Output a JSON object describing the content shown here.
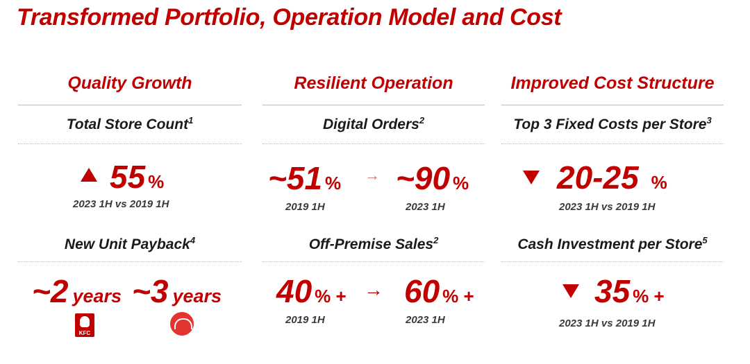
{
  "title": "Transformed Portfolio, Operation Model and Cost",
  "columns": {
    "quality": {
      "heading": "Quality Growth",
      "m1_label": "Total Store Count",
      "m1_sup": "1",
      "m1_value": "55",
      "m1_unit": "%",
      "m1_period": "2023 1H vs 2019 1H",
      "m2_label": "New Unit Payback",
      "m2_sup": "4",
      "kfc_value": "~2",
      "kfc_unit": "years",
      "kfc_logo_text": "KFC",
      "ph_value": "~3",
      "ph_unit": "years"
    },
    "resilient": {
      "heading": "Resilient Operation",
      "m1_label": "Digital Orders",
      "m1_sup": "2",
      "m1_from": "~51",
      "m1_from_unit": "%",
      "m1_to": "~90",
      "m1_to_unit": "%",
      "m1_from_period": "2019 1H",
      "m1_to_period": "2023 1H",
      "m2_label": "Off-Premise Sales",
      "m2_sup": "2",
      "m2_from": "40",
      "m2_from_unit": "% +",
      "m2_to": "60",
      "m2_to_unit": "% +",
      "m2_from_period": "2019 1H",
      "m2_to_period": "2023 1H",
      "arrow": "→"
    },
    "cost": {
      "heading": "Improved Cost Structure",
      "m1_label": "Top 3 Fixed Costs per Store",
      "m1_sup": "3",
      "m1_value": "20-25",
      "m1_unit": "%",
      "m1_period": "2023 1H vs 2019 1H",
      "m2_label": "Cash Investment per Store",
      "m2_sup": "5",
      "m2_value": "35",
      "m2_unit": "% +",
      "m2_period": "2023 1H vs 2019 1H"
    }
  },
  "colors": {
    "accent": "#c00000",
    "rule": "#bdbdbd"
  },
  "icons": {
    "increase": "triangle-up-icon",
    "decrease": "triangle-down-icon",
    "transition": "arrow-right-icon"
  }
}
